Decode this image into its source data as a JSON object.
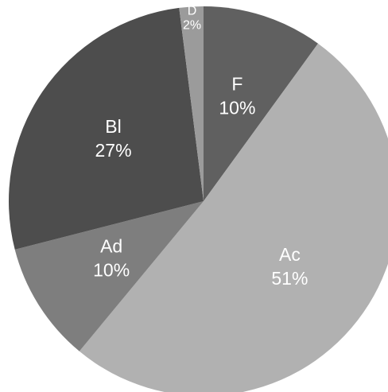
{
  "chart_data": {
    "type": "pie",
    "categories": [
      "F",
      "Ac",
      "Ad",
      "Bl",
      "D"
    ],
    "values": [
      10,
      51,
      10,
      27,
      2
    ],
    "value_labels": [
      "10%",
      "51%",
      "10%",
      "27%",
      "2%"
    ],
    "colors": [
      "#606060",
      "#b1b1b1",
      "#7e7e7e",
      "#4d4d4d",
      "#9b9b9b"
    ]
  }
}
